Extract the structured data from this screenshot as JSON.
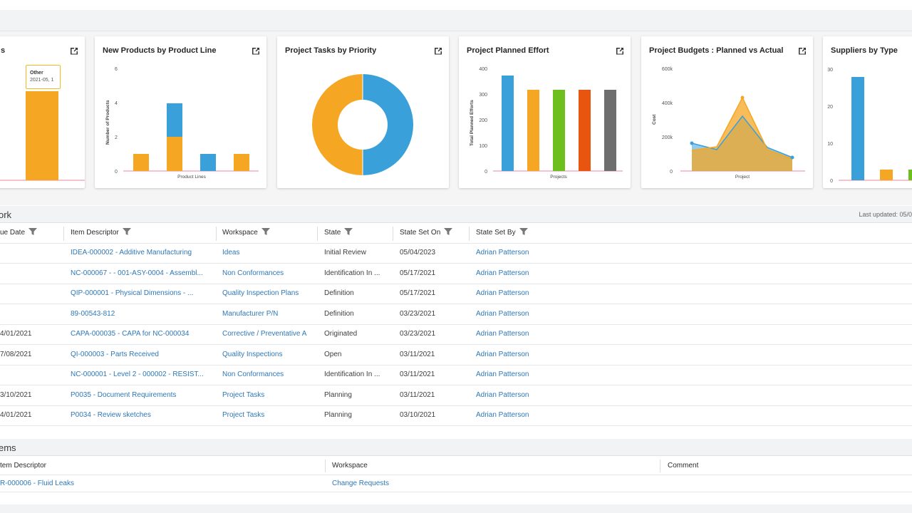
{
  "cards": [
    {
      "title": "s",
      "tooltip": {
        "label": "Other",
        "value": "2021-05, 1"
      },
      "chart_data": {
        "type": "bar",
        "values": [
          1
        ]
      }
    },
    {
      "title": "New Products by Product Line",
      "chart_data": {
        "type": "bar",
        "stacked": true,
        "xlabel": "Product Lines",
        "ylabel": "Number of Products",
        "yticks": [
          "0",
          "2",
          "4",
          "6"
        ],
        "ylim": [
          0,
          6
        ],
        "series": [
          {
            "color": "#f5a623",
            "values": [
              1,
              2,
              0,
              1
            ]
          },
          {
            "color": "#3aa0da",
            "values": [
              0,
              2,
              1,
              0
            ]
          }
        ]
      }
    },
    {
      "title": "Project Tasks by Priority",
      "chart_data": {
        "type": "pie",
        "donut": true,
        "slices": [
          {
            "value": 50,
            "color": "#3aa0da"
          },
          {
            "value": 50,
            "color": "#f5a623"
          }
        ]
      }
    },
    {
      "title": "Project Planned Effort",
      "chart_data": {
        "type": "bar",
        "xlabel": "Projects",
        "ylabel": "Total Planned Efforts",
        "yticks": [
          "0",
          "100",
          "200",
          "300",
          "400"
        ],
        "ylim": [
          0,
          400
        ],
        "values": [
          372,
          318,
          318,
          318,
          318
        ],
        "colors": [
          "#3aa0da",
          "#f5a623",
          "#6cbf1d",
          "#e8550e",
          "#6e6e6e"
        ]
      }
    },
    {
      "title": "Project Budgets : Planned vs Actual",
      "chart_data": {
        "type": "area",
        "xlabel": "Project",
        "ylabel": "Cost",
        "yticks": [
          "0",
          "200k",
          "400k",
          "600k"
        ],
        "ylim": [
          0,
          600000
        ],
        "series": [
          {
            "color": "#3aa0da",
            "values": [
              160000,
              125000,
              320000,
              135000,
              80000
            ]
          },
          {
            "color": "#f5a623",
            "values": [
              120000,
              140000,
              430000,
              125000,
              70000
            ]
          }
        ]
      }
    },
    {
      "title": "Suppliers by Type",
      "chart_data": {
        "type": "bar",
        "yticks": [
          "0",
          "10",
          "20",
          "30"
        ],
        "ylim": [
          0,
          30
        ],
        "values": [
          27.5,
          3,
          3
        ],
        "colors": [
          "#3aa0da",
          "#f5a623",
          "#6cbf1d"
        ]
      }
    }
  ],
  "work": {
    "title": "ork",
    "last_updated": "Last updated: 05/0",
    "columns": [
      "ue Date",
      "Item Descriptor",
      "Workspace",
      "State",
      "State Set On",
      "State Set By"
    ],
    "rows": [
      {
        "due": "",
        "item": "IDEA-000002 - Additive Manufacturing",
        "ws": "Ideas",
        "state": "Initial Review",
        "on": "05/04/2023",
        "by": "Adrian Patterson"
      },
      {
        "due": "",
        "item": "NC-000067 - - 001-ASY-0004 - Assembl...",
        "ws": "Non Conformances",
        "state": "Identification In ...",
        "on": "05/17/2021",
        "by": "Adrian Patterson"
      },
      {
        "due": "",
        "item": "QIP-000001 - Physical Dimensions - ...",
        "ws": "Quality Inspection Plans",
        "state": "Definition",
        "on": "05/17/2021",
        "by": "Adrian Patterson"
      },
      {
        "due": "",
        "item": "89-00543-812",
        "ws": "Manufacturer P/N",
        "state": "Definition",
        "on": "03/23/2021",
        "by": "Adrian Patterson"
      },
      {
        "due": "4/01/2021",
        "item": "CAPA-000035 - CAPA for NC-000034",
        "ws": "Corrective / Preventative A",
        "state": "Originated",
        "on": "03/23/2021",
        "by": "Adrian Patterson"
      },
      {
        "due": "7/08/2021",
        "item": "QI-000003 - Parts Received",
        "ws": "Quality Inspections",
        "state": "Open",
        "on": "03/11/2021",
        "by": "Adrian Patterson"
      },
      {
        "due": "",
        "item": "NC-000001 - Level 2 - 000002 - RESIST...",
        "ws": "Non Conformances",
        "state": "Identification In ...",
        "on": "03/11/2021",
        "by": "Adrian Patterson"
      },
      {
        "due": "3/10/2021",
        "item": "P0035 - Document Requirements",
        "ws": "Project Tasks",
        "state": "Planning",
        "on": "03/11/2021",
        "by": "Adrian Patterson"
      },
      {
        "due": "4/01/2021",
        "item": "P0034 - Review sketches",
        "ws": "Project Tasks",
        "state": "Planning",
        "on": "03/10/2021",
        "by": "Adrian Patterson"
      }
    ]
  },
  "items": {
    "title": "ems",
    "columns": [
      "tem Descriptor",
      "Workspace",
      "Comment"
    ],
    "rows": [
      {
        "item": "R-000006 - Fluid Leaks",
        "ws": "Change Requests",
        "comment": ""
      }
    ]
  },
  "colors": {
    "link": "#2e78b7",
    "orange": "#f5a623",
    "blue": "#3aa0da",
    "green": "#6cbf1d",
    "red": "#e8550e",
    "grey": "#6e6e6e"
  }
}
